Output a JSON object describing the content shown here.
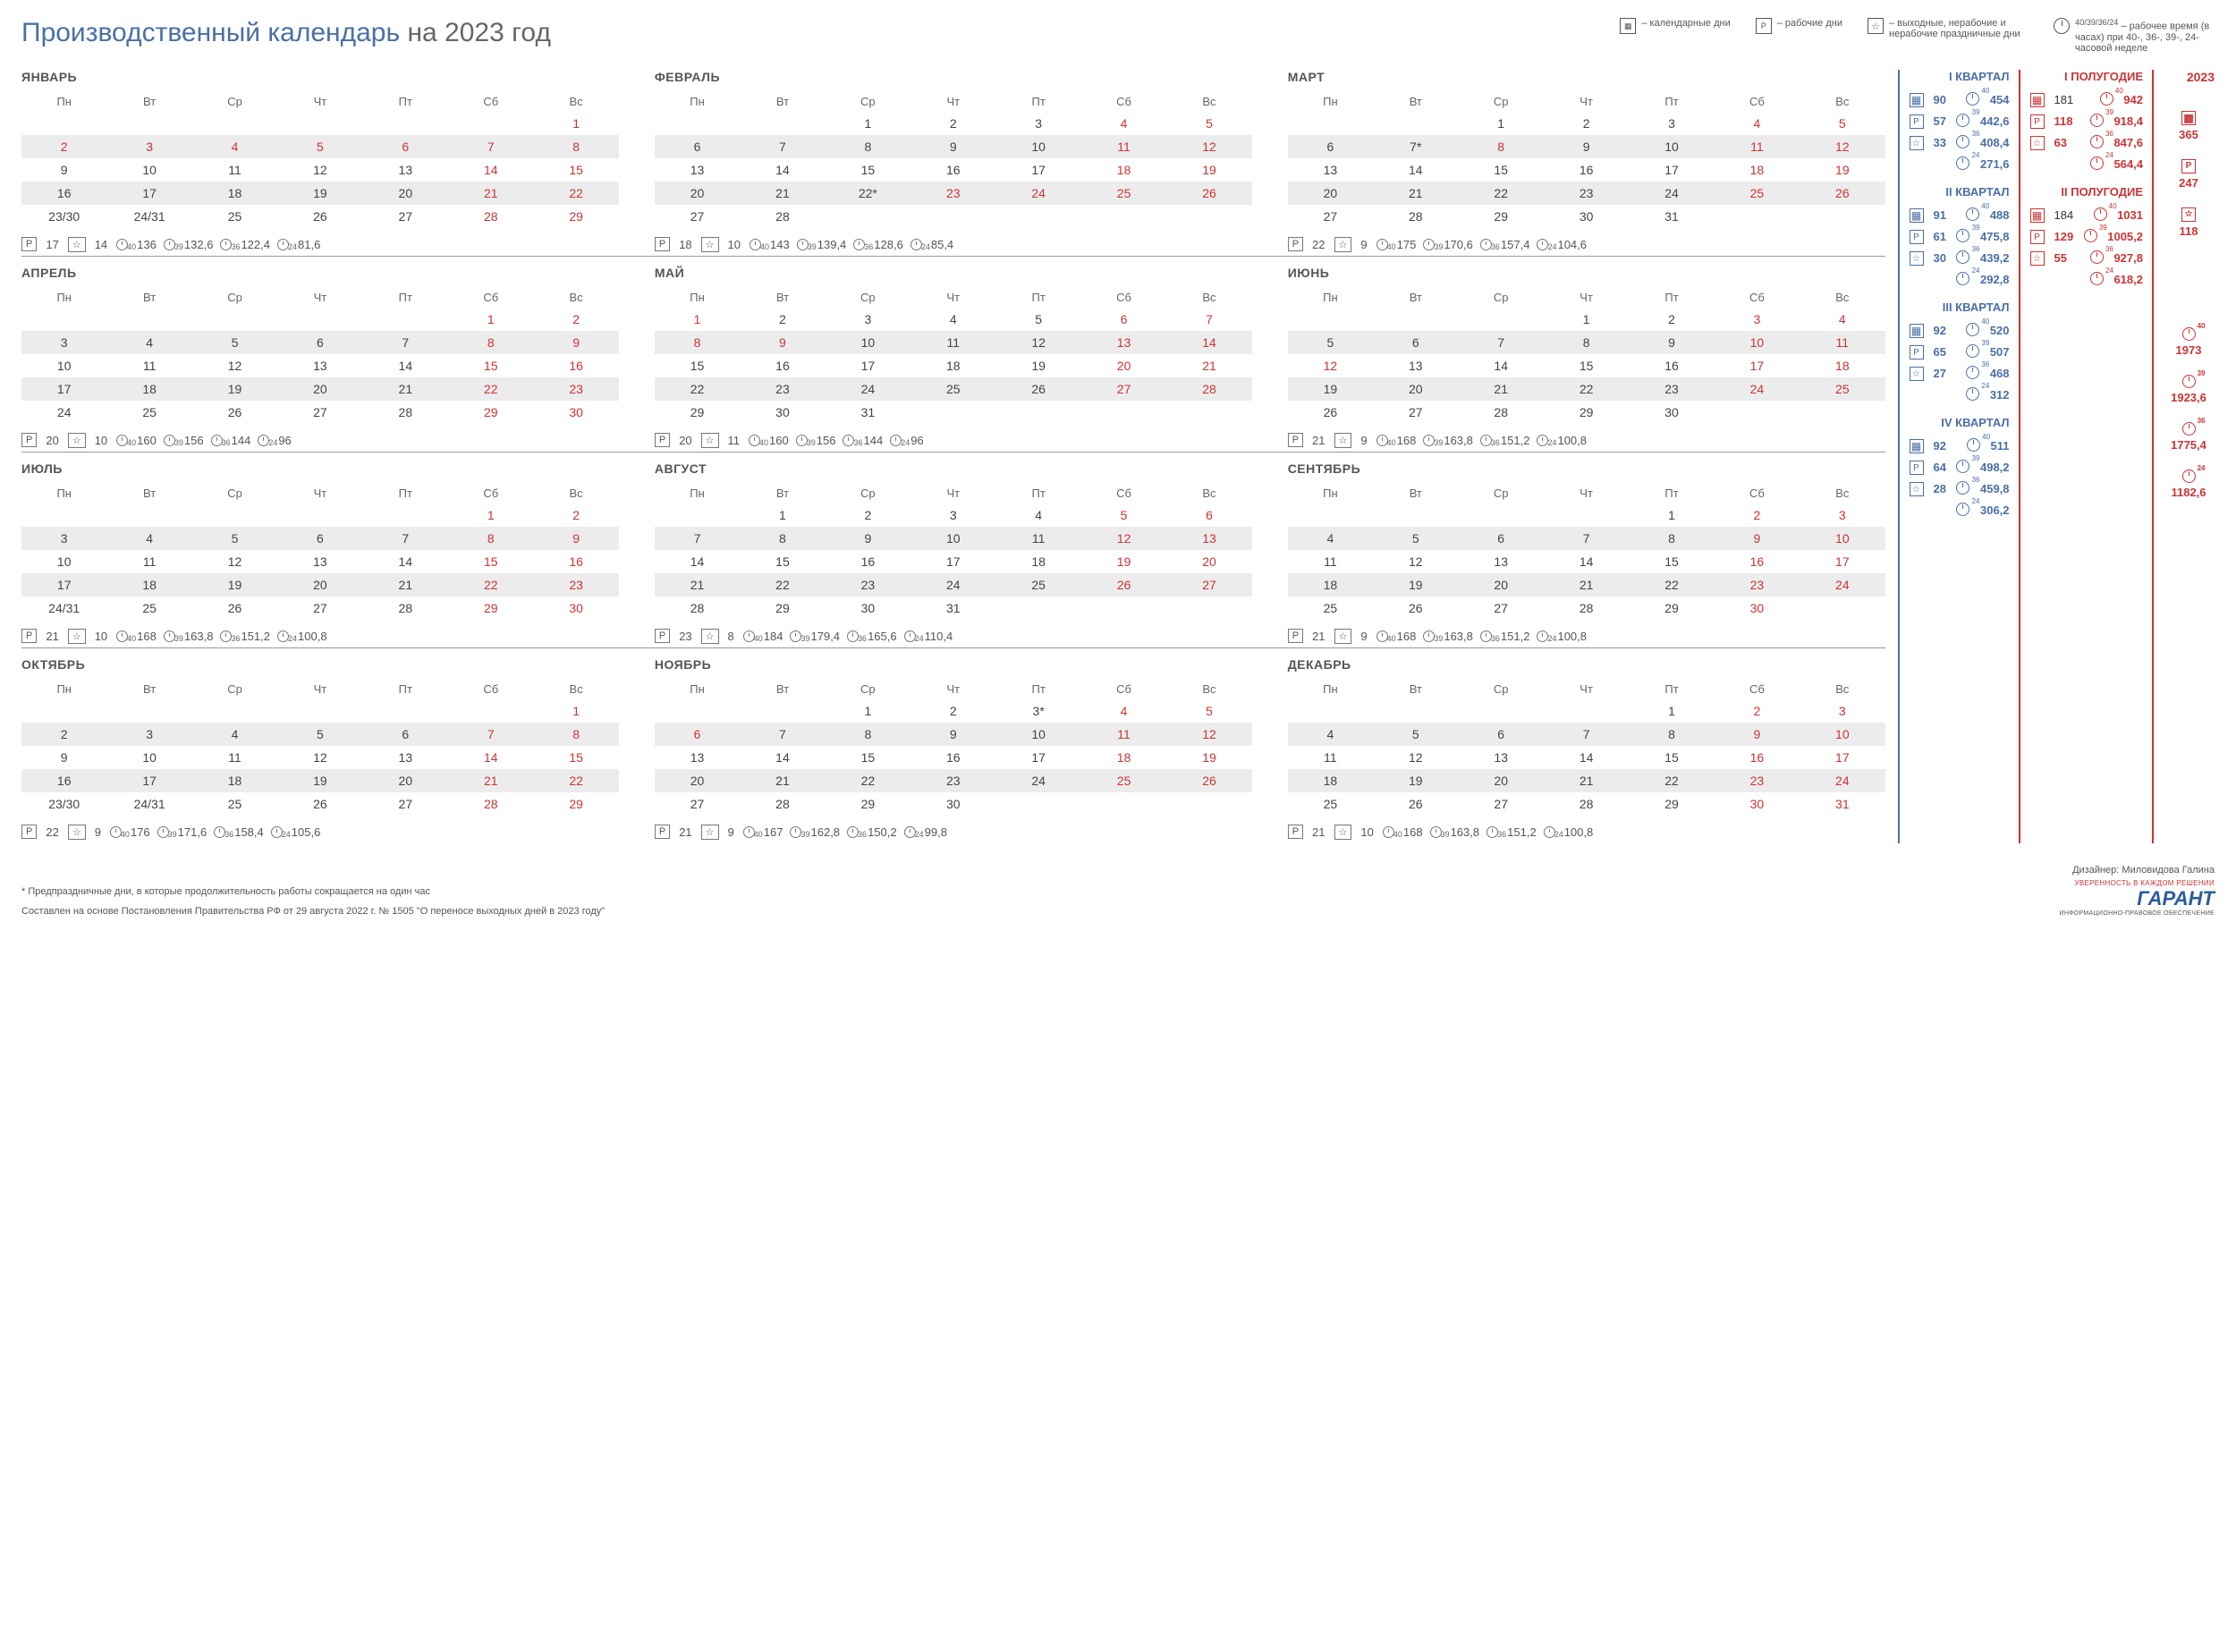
{
  "title_main": "Производственный календарь",
  "title_year": "на 2023 год",
  "legend": {
    "cal_days": "– календарные дни",
    "work_days": "– рабочие дни",
    "weekend": "– выходные, нерабочие и нерабочие праздничные дни",
    "hours_sup": "40/39/36/24",
    "hours": "– рабочее время (в часах) при 40-, 36-, 39-, 24- часовой неделе"
  },
  "weekdays": [
    "Пн",
    "Вт",
    "Ср",
    "Чт",
    "Пт",
    "Сб",
    "Вс"
  ],
  "months": [
    {
      "name": "ЯНВАРЬ",
      "weeks": [
        [
          "",
          "",
          "",
          "",
          "",
          "",
          {
            "d": "1",
            "r": 1
          }
        ],
        [
          {
            "d": "2",
            "r": 1
          },
          {
            "d": "3",
            "r": 1
          },
          {
            "d": "4",
            "r": 1
          },
          {
            "d": "5",
            "r": 1
          },
          {
            "d": "6",
            "r": 1
          },
          {
            "d": "7",
            "r": 1
          },
          {
            "d": "8",
            "r": 1
          }
        ],
        [
          "9",
          "10",
          "11",
          "12",
          "13",
          {
            "d": "14",
            "r": 1
          },
          {
            "d": "15",
            "r": 1
          }
        ],
        [
          "16",
          "17",
          "18",
          "19",
          "20",
          {
            "d": "21",
            "r": 1
          },
          {
            "d": "22",
            "r": 1
          }
        ],
        [
          "23/30",
          "24/31",
          "25",
          "26",
          "27",
          {
            "d": "28",
            "r": 1
          },
          {
            "d": "29",
            "r": 1
          }
        ]
      ],
      "p": "17",
      "s": "14",
      "h40": "136",
      "h39": "132,6",
      "h36": "122,4",
      "h24": "81,6"
    },
    {
      "name": "ФЕВРАЛЬ",
      "weeks": [
        [
          "",
          "",
          "1",
          "2",
          "3",
          {
            "d": "4",
            "r": 1
          },
          {
            "d": "5",
            "r": 1
          }
        ],
        [
          "6",
          "7",
          "8",
          "9",
          "10",
          {
            "d": "11",
            "r": 1
          },
          {
            "d": "12",
            "r": 1
          }
        ],
        [
          "13",
          "14",
          "15",
          "16",
          "17",
          {
            "d": "18",
            "r": 1
          },
          {
            "d": "19",
            "r": 1
          }
        ],
        [
          "20",
          "21",
          "22*",
          {
            "d": "23",
            "r": 1
          },
          {
            "d": "24",
            "r": 1
          },
          {
            "d": "25",
            "r": 1
          },
          {
            "d": "26",
            "r": 1
          }
        ],
        [
          "27",
          "28",
          "",
          "",
          "",
          "",
          ""
        ]
      ],
      "p": "18",
      "s": "10",
      "h40": "143",
      "h39": "139,4",
      "h36": "128,6",
      "h24": "85,4"
    },
    {
      "name": "МАРТ",
      "weeks": [
        [
          "",
          "",
          "1",
          "2",
          "3",
          {
            "d": "4",
            "r": 1
          },
          {
            "d": "5",
            "r": 1
          }
        ],
        [
          "6",
          "7*",
          {
            "d": "8",
            "r": 1
          },
          "9",
          "10",
          {
            "d": "11",
            "r": 1
          },
          {
            "d": "12",
            "r": 1
          }
        ],
        [
          "13",
          "14",
          "15",
          "16",
          "17",
          {
            "d": "18",
            "r": 1
          },
          {
            "d": "19",
            "r": 1
          }
        ],
        [
          "20",
          "21",
          "22",
          "23",
          "24",
          {
            "d": "25",
            "r": 1
          },
          {
            "d": "26",
            "r": 1
          }
        ],
        [
          "27",
          "28",
          "29",
          "30",
          "31",
          "",
          ""
        ]
      ],
      "p": "22",
      "s": "9",
      "h40": "175",
      "h39": "170,6",
      "h36": "157,4",
      "h24": "104,6"
    },
    {
      "name": "АПРЕЛЬ",
      "weeks": [
        [
          "",
          "",
          "",
          "",
          "",
          {
            "d": "1",
            "r": 1
          },
          {
            "d": "2",
            "r": 1
          }
        ],
        [
          "3",
          "4",
          "5",
          "6",
          "7",
          {
            "d": "8",
            "r": 1
          },
          {
            "d": "9",
            "r": 1
          }
        ],
        [
          "10",
          "11",
          "12",
          "13",
          "14",
          {
            "d": "15",
            "r": 1
          },
          {
            "d": "16",
            "r": 1
          }
        ],
        [
          "17",
          "18",
          "19",
          "20",
          "21",
          {
            "d": "22",
            "r": 1
          },
          {
            "d": "23",
            "r": 1
          }
        ],
        [
          "24",
          "25",
          "26",
          "27",
          "28",
          {
            "d": "29",
            "r": 1
          },
          {
            "d": "30",
            "r": 1
          }
        ]
      ],
      "p": "20",
      "s": "10",
      "h40": "160",
      "h39": "156",
      "h36": "144",
      "h24": "96"
    },
    {
      "name": "МАЙ",
      "weeks": [
        [
          {
            "d": "1",
            "r": 1
          },
          "2",
          "3",
          "4",
          "5",
          {
            "d": "6",
            "r": 1
          },
          {
            "d": "7",
            "r": 1
          }
        ],
        [
          {
            "d": "8",
            "r": 1
          },
          {
            "d": "9",
            "r": 1
          },
          "10",
          "11",
          "12",
          {
            "d": "13",
            "r": 1
          },
          {
            "d": "14",
            "r": 1
          }
        ],
        [
          "15",
          "16",
          "17",
          "18",
          "19",
          {
            "d": "20",
            "r": 1
          },
          {
            "d": "21",
            "r": 1
          }
        ],
        [
          "22",
          "23",
          "24",
          "25",
          "26",
          {
            "d": "27",
            "r": 1
          },
          {
            "d": "28",
            "r": 1
          }
        ],
        [
          "29",
          "30",
          "31",
          "",
          "",
          "",
          ""
        ]
      ],
      "p": "20",
      "s": "11",
      "h40": "160",
      "h39": "156",
      "h36": "144",
      "h24": "96"
    },
    {
      "name": "ИЮНЬ",
      "weeks": [
        [
          "",
          "",
          "",
          "1",
          "2",
          {
            "d": "3",
            "r": 1
          },
          {
            "d": "4",
            "r": 1
          }
        ],
        [
          "5",
          "6",
          "7",
          "8",
          "9",
          {
            "d": "10",
            "r": 1
          },
          {
            "d": "11",
            "r": 1
          }
        ],
        [
          {
            "d": "12",
            "r": 1
          },
          "13",
          "14",
          "15",
          "16",
          {
            "d": "17",
            "r": 1
          },
          {
            "d": "18",
            "r": 1
          }
        ],
        [
          "19",
          "20",
          "21",
          "22",
          "23",
          {
            "d": "24",
            "r": 1
          },
          {
            "d": "25",
            "r": 1
          }
        ],
        [
          "26",
          "27",
          "28",
          "29",
          "30",
          "",
          ""
        ]
      ],
      "p": "21",
      "s": "9",
      "h40": "168",
      "h39": "163,8",
      "h36": "151,2",
      "h24": "100,8"
    },
    {
      "name": "ИЮЛЬ",
      "weeks": [
        [
          "",
          "",
          "",
          "",
          "",
          {
            "d": "1",
            "r": 1
          },
          {
            "d": "2",
            "r": 1
          }
        ],
        [
          "3",
          "4",
          "5",
          "6",
          "7",
          {
            "d": "8",
            "r": 1
          },
          {
            "d": "9",
            "r": 1
          }
        ],
        [
          "10",
          "11",
          "12",
          "13",
          "14",
          {
            "d": "15",
            "r": 1
          },
          {
            "d": "16",
            "r": 1
          }
        ],
        [
          "17",
          "18",
          "19",
          "20",
          "21",
          {
            "d": "22",
            "r": 1
          },
          {
            "d": "23",
            "r": 1
          }
        ],
        [
          "24/31",
          "25",
          "26",
          "27",
          "28",
          {
            "d": "29",
            "r": 1
          },
          {
            "d": "30",
            "r": 1
          }
        ]
      ],
      "p": "21",
      "s": "10",
      "h40": "168",
      "h39": "163,8",
      "h36": "151,2",
      "h24": "100,8"
    },
    {
      "name": "АВГУСТ",
      "weeks": [
        [
          "",
          "1",
          "2",
          "3",
          "4",
          {
            "d": "5",
            "r": 1
          },
          {
            "d": "6",
            "r": 1
          }
        ],
        [
          "7",
          "8",
          "9",
          "10",
          "11",
          {
            "d": "12",
            "r": 1
          },
          {
            "d": "13",
            "r": 1
          }
        ],
        [
          "14",
          "15",
          "16",
          "17",
          "18",
          {
            "d": "19",
            "r": 1
          },
          {
            "d": "20",
            "r": 1
          }
        ],
        [
          "21",
          "22",
          "23",
          "24",
          "25",
          {
            "d": "26",
            "r": 1
          },
          {
            "d": "27",
            "r": 1
          }
        ],
        [
          "28",
          "29",
          "30",
          "31",
          "",
          "",
          ""
        ]
      ],
      "p": "23",
      "s": "8",
      "h40": "184",
      "h39": "179,4",
      "h36": "165,6",
      "h24": "110,4"
    },
    {
      "name": "СЕНТЯБРЬ",
      "weeks": [
        [
          "",
          "",
          "",
          "",
          "1",
          {
            "d": "2",
            "r": 1
          },
          {
            "d": "3",
            "r": 1
          }
        ],
        [
          "4",
          "5",
          "6",
          "7",
          "8",
          {
            "d": "9",
            "r": 1
          },
          {
            "d": "10",
            "r": 1
          }
        ],
        [
          "11",
          "12",
          "13",
          "14",
          "15",
          {
            "d": "16",
            "r": 1
          },
          {
            "d": "17",
            "r": 1
          }
        ],
        [
          "18",
          "19",
          "20",
          "21",
          "22",
          {
            "d": "23",
            "r": 1
          },
          {
            "d": "24",
            "r": 1
          }
        ],
        [
          "25",
          "26",
          "27",
          "28",
          "29",
          {
            "d": "30",
            "r": 1
          },
          ""
        ]
      ],
      "p": "21",
      "s": "9",
      "h40": "168",
      "h39": "163,8",
      "h36": "151,2",
      "h24": "100,8"
    },
    {
      "name": "ОКТЯБРЬ",
      "weeks": [
        [
          "",
          "",
          "",
          "",
          "",
          "",
          {
            "d": "1",
            "r": 1
          }
        ],
        [
          "2",
          "3",
          "4",
          "5",
          "6",
          {
            "d": "7",
            "r": 1
          },
          {
            "d": "8",
            "r": 1
          }
        ],
        [
          "9",
          "10",
          "11",
          "12",
          "13",
          {
            "d": "14",
            "r": 1
          },
          {
            "d": "15",
            "r": 1
          }
        ],
        [
          "16",
          "17",
          "18",
          "19",
          "20",
          {
            "d": "21",
            "r": 1
          },
          {
            "d": "22",
            "r": 1
          }
        ],
        [
          "23/30",
          "24/31",
          "25",
          "26",
          "27",
          {
            "d": "28",
            "r": 1
          },
          {
            "d": "29",
            "r": 1
          }
        ]
      ],
      "p": "22",
      "s": "9",
      "h40": "176",
      "h39": "171,6",
      "h36": "158,4",
      "h24": "105,6"
    },
    {
      "name": "НОЯБРЬ",
      "weeks": [
        [
          "",
          "",
          "1",
          "2",
          "3*",
          {
            "d": "4",
            "r": 1
          },
          {
            "d": "5",
            "r": 1
          }
        ],
        [
          {
            "d": "6",
            "r": 1
          },
          "7",
          "8",
          "9",
          "10",
          {
            "d": "11",
            "r": 1
          },
          {
            "d": "12",
            "r": 1
          }
        ],
        [
          "13",
          "14",
          "15",
          "16",
          "17",
          {
            "d": "18",
            "r": 1
          },
          {
            "d": "19",
            "r": 1
          }
        ],
        [
          "20",
          "21",
          "22",
          "23",
          "24",
          {
            "d": "25",
            "r": 1
          },
          {
            "d": "26",
            "r": 1
          }
        ],
        [
          "27",
          "28",
          "29",
          "30",
          "",
          "",
          ""
        ]
      ],
      "p": "21",
      "s": "9",
      "h40": "167",
      "h39": "162,8",
      "h36": "150,2",
      "h24": "99,8"
    },
    {
      "name": "ДЕКАБРЬ",
      "weeks": [
        [
          "",
          "",
          "",
          "",
          "1",
          {
            "d": "2",
            "r": 1
          },
          {
            "d": "3",
            "r": 1
          }
        ],
        [
          "4",
          "5",
          "6",
          "7",
          "8",
          {
            "d": "9",
            "r": 1
          },
          {
            "d": "10",
            "r": 1
          }
        ],
        [
          "11",
          "12",
          "13",
          "14",
          "15",
          {
            "d": "16",
            "r": 1
          },
          {
            "d": "17",
            "r": 1
          }
        ],
        [
          "18",
          "19",
          "20",
          "21",
          "22",
          {
            "d": "23",
            "r": 1
          },
          {
            "d": "24",
            "r": 1
          }
        ],
        [
          "25",
          "26",
          "27",
          "28",
          "29",
          {
            "d": "30",
            "r": 1
          },
          {
            "d": "31",
            "r": 1
          }
        ]
      ],
      "p": "21",
      "s": "10",
      "h40": "168",
      "h39": "163,8",
      "h36": "151,2",
      "h24": "100,8"
    }
  ],
  "quarters": [
    {
      "title": "I КВАРТАЛ",
      "cal": "90",
      "p": "57",
      "s": "33",
      "h40": "454",
      "h39": "442,6",
      "h36": "408,4",
      "h24": "271,6"
    },
    {
      "title": "II КВАРТАЛ",
      "cal": "91",
      "p": "61",
      "s": "30",
      "h40": "488",
      "h39": "475,8",
      "h36": "439,2",
      "h24": "292,8"
    },
    {
      "title": "III КВАРТАЛ",
      "cal": "92",
      "p": "65",
      "s": "27",
      "h40": "520",
      "h39": "507",
      "h36": "468",
      "h24": "312"
    },
    {
      "title": "IV КВАРТАЛ",
      "cal": "92",
      "p": "64",
      "s": "28",
      "h40": "511",
      "h39": "498,2",
      "h36": "459,8",
      "h24": "306,2"
    }
  ],
  "halves": [
    {
      "title": "I ПОЛУГОДИЕ",
      "cal": "181",
      "p": "118",
      "s": "63",
      "h40": "942",
      "h39": "918,4",
      "h36": "847,6",
      "h24": "564,4"
    },
    {
      "title": "II ПОЛУГОДИЕ",
      "cal": "184",
      "p": "129",
      "s": "55",
      "h40": "1031",
      "h39": "1005,2",
      "h36": "927,8",
      "h24": "618,2"
    }
  ],
  "year": {
    "title": "2023",
    "cal": "365",
    "p": "247",
    "s": "118",
    "h40": "1973",
    "h39": "1923,6",
    "h36": "1775,4",
    "h24": "1182,6"
  },
  "footnote": "* Предпраздничные дни, в которые продолжительность работы сокращается на один час",
  "source": "Составлен на основе Постановления Правительства РФ от 29 августа 2022 г. № 1505 \"О переносе выходных дней в 2023 году\"",
  "designer": "Дизайнер: Миловидова Галина",
  "logo_tag": "УВЕРЕННОСТЬ В КАЖДОМ РЕШЕНИИ",
  "logo": "ГАРАНТ",
  "logo_sub": "ИНФОРМАЦИОННО-ПРАВОВОЕ ОБЕСПЕЧЕНИЕ"
}
